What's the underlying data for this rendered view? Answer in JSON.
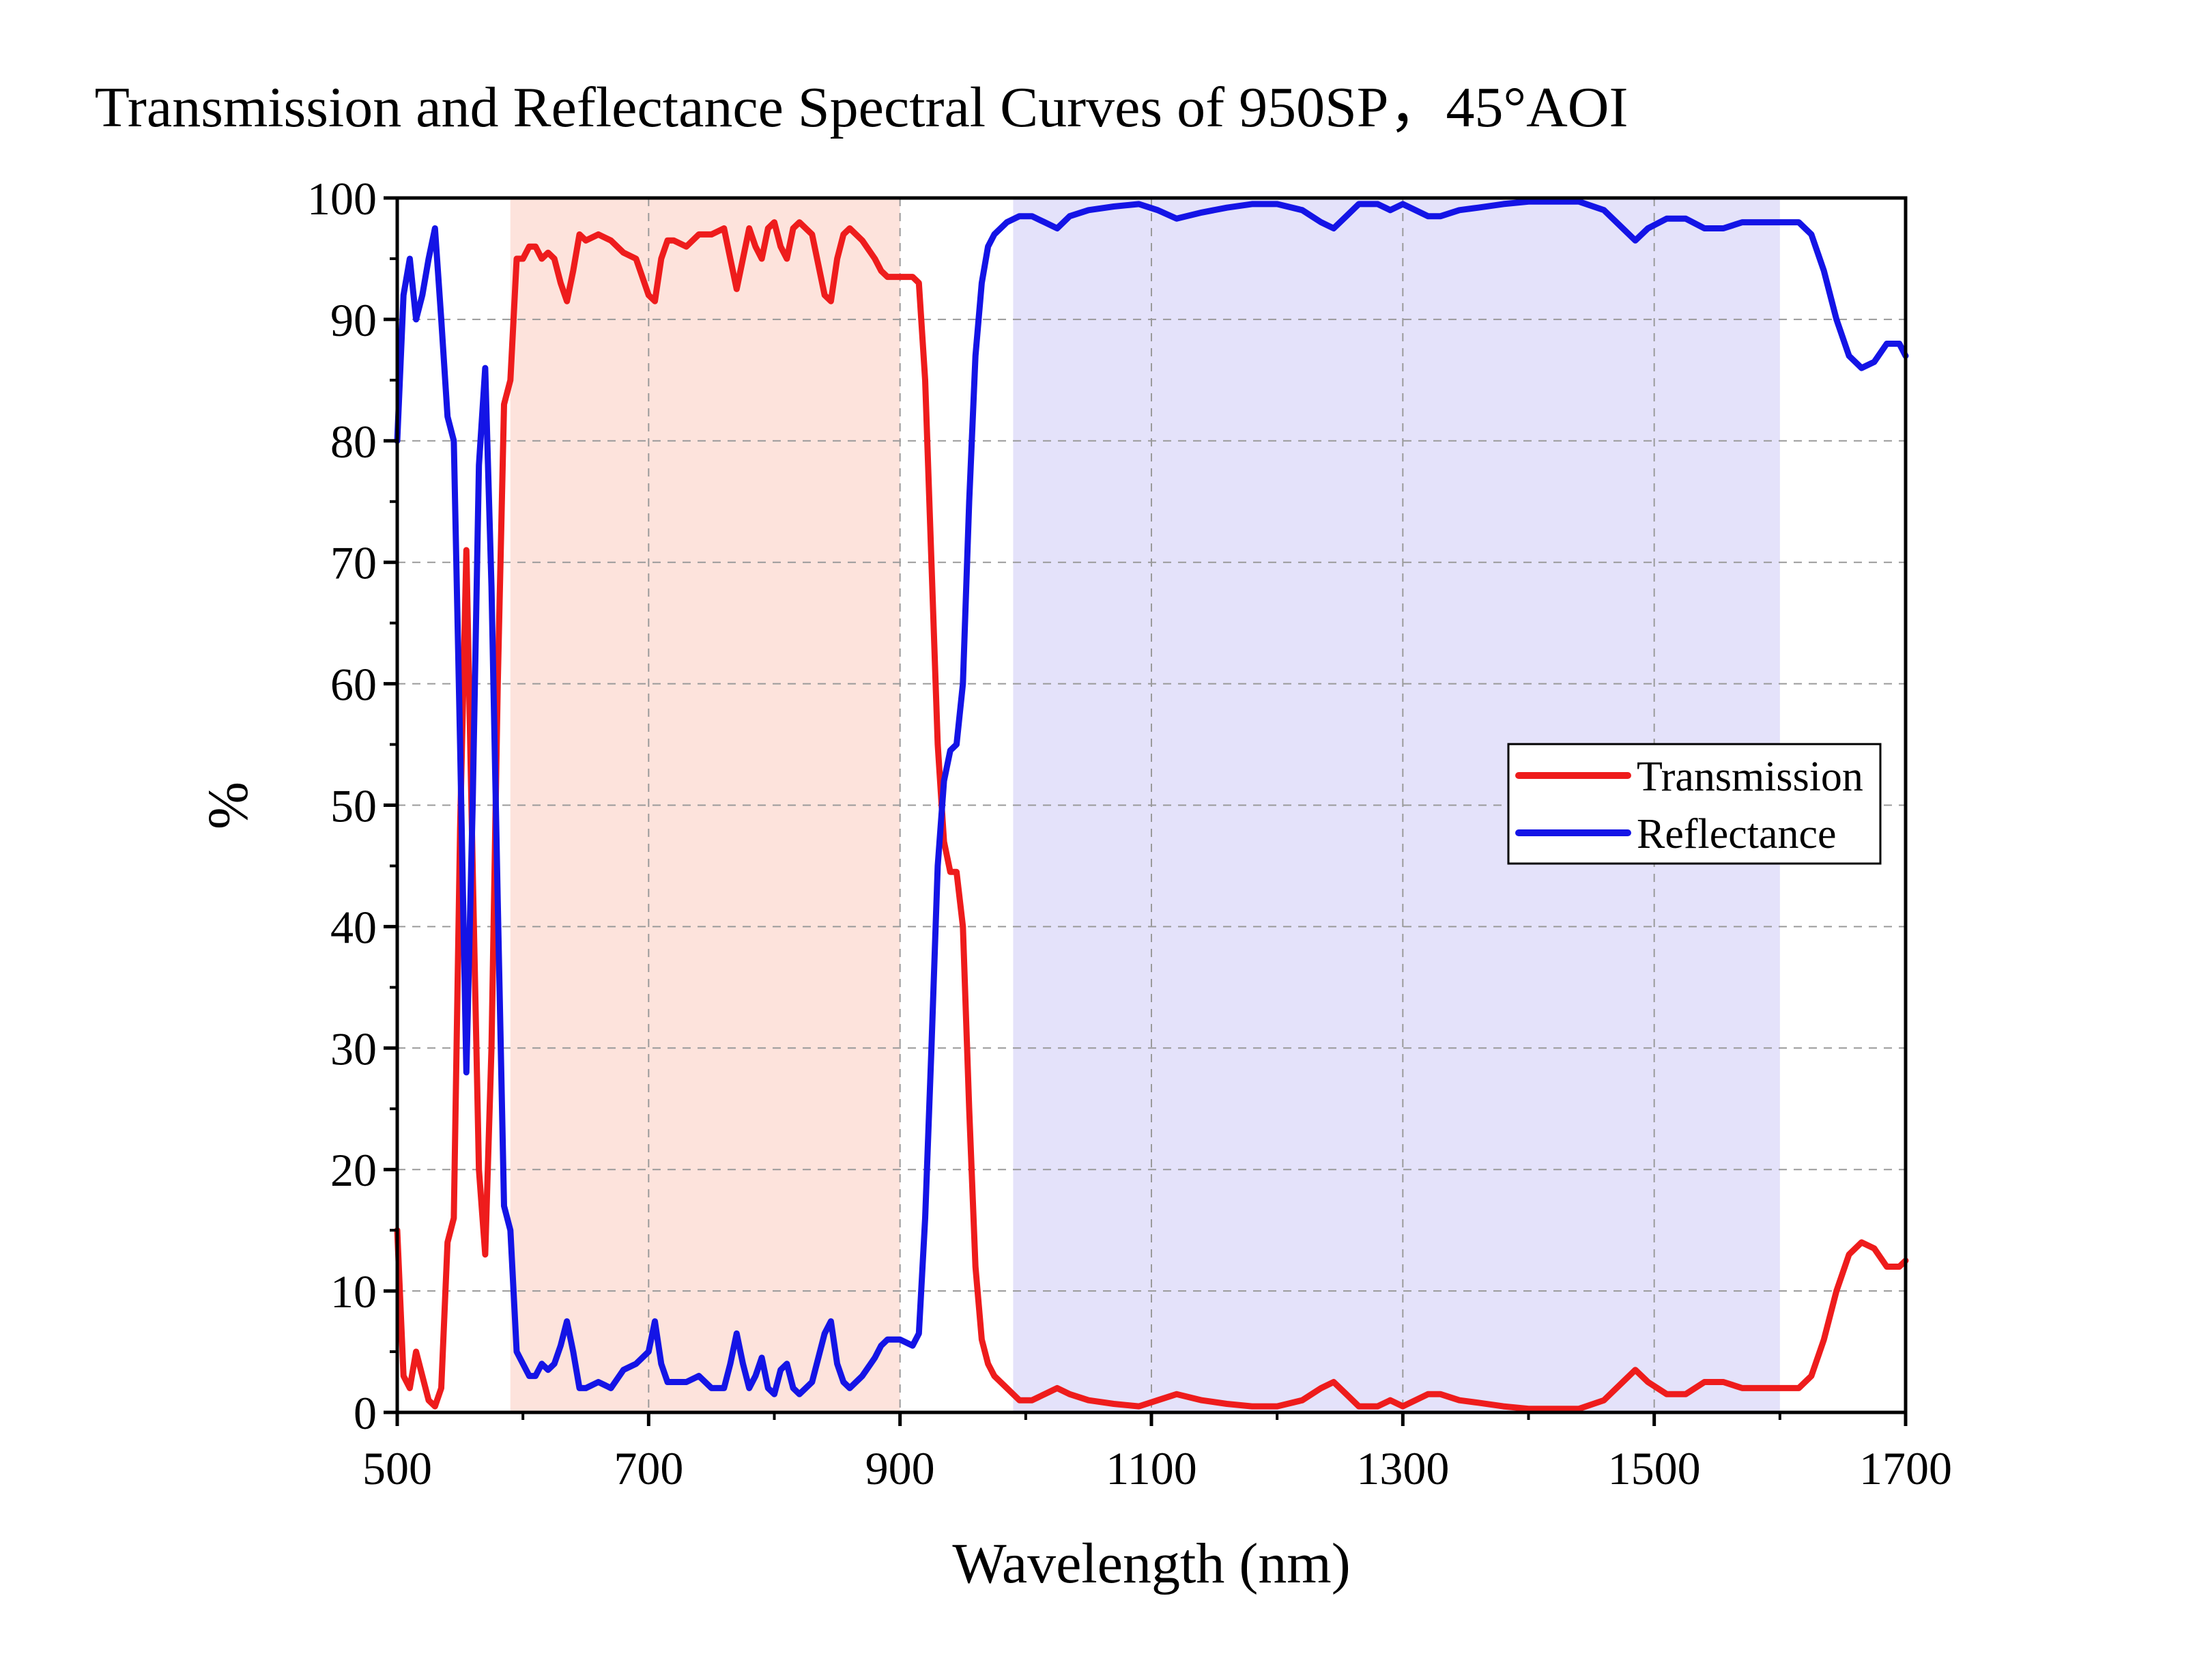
{
  "chart_data": {
    "type": "line",
    "title": "Transmission and Reflectance Spectral Curves of 950SP，45°AOI",
    "xlabel": "Wavelength (nm)",
    "ylabel": "%",
    "xlim": [
      500,
      1700
    ],
    "ylim": [
      0,
      100
    ],
    "x_ticks": [
      "500",
      "700",
      "900",
      "1100",
      "1300",
      "1500",
      "1700"
    ],
    "y_ticks": [
      "0",
      "10",
      "20",
      "30",
      "40",
      "50",
      "60",
      "70",
      "80",
      "90",
      "100"
    ],
    "grid": true,
    "legend_position": "right",
    "shaded_regions": [
      {
        "x_start": 590,
        "x_end": 900,
        "color": "#fde3dc"
      },
      {
        "x_start": 990,
        "x_end": 1600,
        "color": "#e4e2fa"
      }
    ],
    "series": [
      {
        "name": "Transmission",
        "color": "#ee1c1c",
        "points": [
          [
            500,
            15
          ],
          [
            505,
            3
          ],
          [
            510,
            2
          ],
          [
            515,
            5
          ],
          [
            520,
            3
          ],
          [
            525,
            1
          ],
          [
            530,
            0.5
          ],
          [
            535,
            2
          ],
          [
            540,
            14
          ],
          [
            545,
            16
          ],
          [
            550,
            48
          ],
          [
            555,
            71
          ],
          [
            560,
            45
          ],
          [
            565,
            20
          ],
          [
            570,
            13
          ],
          [
            575,
            30
          ],
          [
            580,
            60
          ],
          [
            585,
            83
          ],
          [
            590,
            85
          ],
          [
            595,
            95
          ],
          [
            600,
            95
          ],
          [
            605,
            96
          ],
          [
            610,
            96
          ],
          [
            615,
            95
          ],
          [
            620,
            95.5
          ],
          [
            625,
            95
          ],
          [
            630,
            93
          ],
          [
            635,
            91.5
          ],
          [
            640,
            94
          ],
          [
            645,
            97
          ],
          [
            650,
            96.5
          ],
          [
            660,
            97
          ],
          [
            670,
            96.5
          ],
          [
            680,
            95.5
          ],
          [
            690,
            95
          ],
          [
            700,
            92
          ],
          [
            705,
            91.5
          ],
          [
            710,
            95
          ],
          [
            715,
            96.5
          ],
          [
            720,
            96.5
          ],
          [
            730,
            96
          ],
          [
            740,
            97
          ],
          [
            750,
            97
          ],
          [
            760,
            97.5
          ],
          [
            765,
            95
          ],
          [
            770,
            92.5
          ],
          [
            775,
            95
          ],
          [
            780,
            97.5
          ],
          [
            785,
            96
          ],
          [
            790,
            95
          ],
          [
            795,
            97.5
          ],
          [
            800,
            98
          ],
          [
            805,
            96
          ],
          [
            810,
            95
          ],
          [
            815,
            97.5
          ],
          [
            820,
            98
          ],
          [
            830,
            97
          ],
          [
            840,
            92
          ],
          [
            845,
            91.5
          ],
          [
            850,
            95
          ],
          [
            855,
            97
          ],
          [
            860,
            97.5
          ],
          [
            870,
            96.5
          ],
          [
            880,
            95
          ],
          [
            885,
            94
          ],
          [
            890,
            93.5
          ],
          [
            900,
            93.5
          ],
          [
            910,
            93.5
          ],
          [
            915,
            93
          ],
          [
            920,
            85
          ],
          [
            925,
            70
          ],
          [
            930,
            55
          ],
          [
            935,
            47
          ],
          [
            940,
            44.5
          ],
          [
            945,
            44.5
          ],
          [
            950,
            40
          ],
          [
            955,
            25
          ],
          [
            960,
            12
          ],
          [
            965,
            6
          ],
          [
            970,
            4
          ],
          [
            975,
            3
          ],
          [
            985,
            2
          ],
          [
            995,
            1
          ],
          [
            1005,
            1
          ],
          [
            1015,
            1.5
          ],
          [
            1025,
            2
          ],
          [
            1035,
            1.5
          ],
          [
            1050,
            1
          ],
          [
            1070,
            0.7
          ],
          [
            1090,
            0.5
          ],
          [
            1105,
            1
          ],
          [
            1120,
            1.5
          ],
          [
            1140,
            1
          ],
          [
            1160,
            0.7
          ],
          [
            1180,
            0.5
          ],
          [
            1200,
            0.5
          ],
          [
            1220,
            1
          ],
          [
            1235,
            2
          ],
          [
            1245,
            2.5
          ],
          [
            1255,
            1.5
          ],
          [
            1265,
            0.5
          ],
          [
            1280,
            0.5
          ],
          [
            1290,
            1
          ],
          [
            1300,
            0.5
          ],
          [
            1310,
            1
          ],
          [
            1320,
            1.5
          ],
          [
            1330,
            1.5
          ],
          [
            1345,
            1
          ],
          [
            1360,
            0.8
          ],
          [
            1380,
            0.5
          ],
          [
            1400,
            0.3
          ],
          [
            1420,
            0.3
          ],
          [
            1440,
            0.3
          ],
          [
            1460,
            1
          ],
          [
            1475,
            2.5
          ],
          [
            1485,
            3.5
          ],
          [
            1495,
            2.5
          ],
          [
            1510,
            1.5
          ],
          [
            1525,
            1.5
          ],
          [
            1540,
            2.5
          ],
          [
            1555,
            2.5
          ],
          [
            1570,
            2
          ],
          [
            1590,
            2
          ],
          [
            1605,
            2
          ],
          [
            1615,
            2
          ],
          [
            1625,
            3
          ],
          [
            1635,
            6
          ],
          [
            1645,
            10
          ],
          [
            1655,
            13
          ],
          [
            1665,
            14
          ],
          [
            1675,
            13.5
          ],
          [
            1685,
            12
          ],
          [
            1695,
            12
          ],
          [
            1700,
            12.5
          ]
        ]
      },
      {
        "name": "Reflectance",
        "color": "#1414e6",
        "points": [
          [
            500,
            80
          ],
          [
            505,
            92
          ],
          [
            510,
            95
          ],
          [
            515,
            90
          ],
          [
            520,
            92
          ],
          [
            525,
            95
          ],
          [
            530,
            97.5
          ],
          [
            535,
            90
          ],
          [
            540,
            82
          ],
          [
            545,
            80
          ],
          [
            550,
            55
          ],
          [
            555,
            28
          ],
          [
            560,
            50
          ],
          [
            565,
            78
          ],
          [
            570,
            86
          ],
          [
            575,
            68
          ],
          [
            580,
            42
          ],
          [
            585,
            17
          ],
          [
            590,
            15
          ],
          [
            595,
            5
          ],
          [
            600,
            4
          ],
          [
            605,
            3
          ],
          [
            610,
            3
          ],
          [
            615,
            4
          ],
          [
            620,
            3.5
          ],
          [
            625,
            4
          ],
          [
            630,
            5.5
          ],
          [
            635,
            7.5
          ],
          [
            640,
            5
          ],
          [
            645,
            2
          ],
          [
            650,
            2
          ],
          [
            660,
            2.5
          ],
          [
            670,
            2
          ],
          [
            680,
            3.5
          ],
          [
            690,
            4
          ],
          [
            700,
            5
          ],
          [
            705,
            7.5
          ],
          [
            710,
            4
          ],
          [
            715,
            2.5
          ],
          [
            720,
            2.5
          ],
          [
            730,
            2.5
          ],
          [
            740,
            3
          ],
          [
            750,
            2
          ],
          [
            760,
            2
          ],
          [
            765,
            4
          ],
          [
            770,
            6.5
          ],
          [
            775,
            4
          ],
          [
            780,
            2
          ],
          [
            785,
            3
          ],
          [
            790,
            4.5
          ],
          [
            795,
            2
          ],
          [
            800,
            1.5
          ],
          [
            805,
            3.5
          ],
          [
            810,
            4
          ],
          [
            815,
            2
          ],
          [
            820,
            1.5
          ],
          [
            830,
            2.5
          ],
          [
            840,
            6.5
          ],
          [
            845,
            7.5
          ],
          [
            850,
            4
          ],
          [
            855,
            2.5
          ],
          [
            860,
            2
          ],
          [
            870,
            3
          ],
          [
            880,
            4.5
          ],
          [
            885,
            5.5
          ],
          [
            890,
            6
          ],
          [
            900,
            6
          ],
          [
            910,
            5.5
          ],
          [
            915,
            6.5
          ],
          [
            920,
            16
          ],
          [
            925,
            30
          ],
          [
            930,
            45
          ],
          [
            935,
            52
          ],
          [
            940,
            54.5
          ],
          [
            945,
            55
          ],
          [
            950,
            60
          ],
          [
            955,
            75
          ],
          [
            960,
            87
          ],
          [
            965,
            93
          ],
          [
            970,
            96
          ],
          [
            975,
            97
          ],
          [
            985,
            98
          ],
          [
            995,
            98.5
          ],
          [
            1005,
            98.5
          ],
          [
            1015,
            98
          ],
          [
            1025,
            97.5
          ],
          [
            1035,
            98.5
          ],
          [
            1050,
            99
          ],
          [
            1070,
            99.3
          ],
          [
            1090,
            99.5
          ],
          [
            1105,
            99
          ],
          [
            1120,
            98.3
          ],
          [
            1140,
            98.8
          ],
          [
            1160,
            99.2
          ],
          [
            1180,
            99.5
          ],
          [
            1200,
            99.5
          ],
          [
            1220,
            99
          ],
          [
            1235,
            98
          ],
          [
            1245,
            97.5
          ],
          [
            1255,
            98.5
          ],
          [
            1265,
            99.5
          ],
          [
            1280,
            99.5
          ],
          [
            1290,
            99
          ],
          [
            1300,
            99.5
          ],
          [
            1310,
            99
          ],
          [
            1320,
            98.5
          ],
          [
            1330,
            98.5
          ],
          [
            1345,
            99
          ],
          [
            1360,
            99.2
          ],
          [
            1380,
            99.5
          ],
          [
            1400,
            99.7
          ],
          [
            1420,
            99.7
          ],
          [
            1440,
            99.7
          ],
          [
            1460,
            99
          ],
          [
            1475,
            97.5
          ],
          [
            1485,
            96.5
          ],
          [
            1495,
            97.5
          ],
          [
            1510,
            98.3
          ],
          [
            1525,
            98.3
          ],
          [
            1540,
            97.5
          ],
          [
            1555,
            97.5
          ],
          [
            1570,
            98
          ],
          [
            1590,
            98
          ],
          [
            1605,
            98
          ],
          [
            1615,
            98
          ],
          [
            1625,
            97
          ],
          [
            1635,
            94
          ],
          [
            1645,
            90
          ],
          [
            1655,
            87
          ],
          [
            1665,
            86
          ],
          [
            1675,
            86.5
          ],
          [
            1685,
            88
          ],
          [
            1695,
            88
          ],
          [
            1700,
            87
          ]
        ]
      }
    ]
  }
}
